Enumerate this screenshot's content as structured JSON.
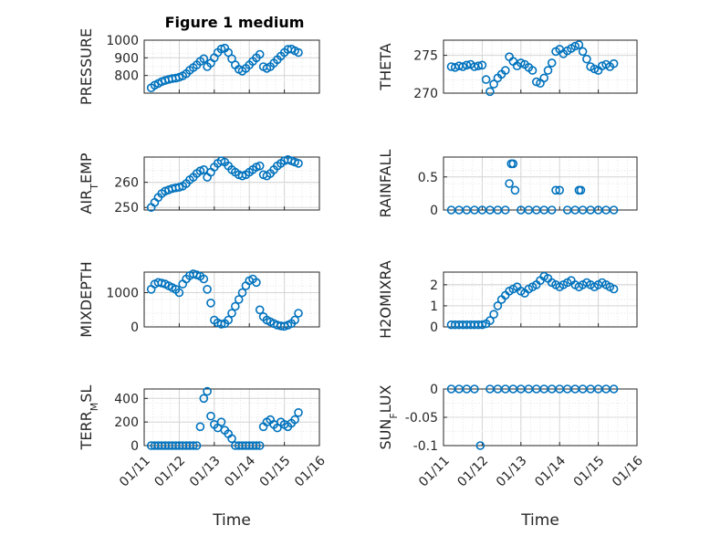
{
  "figure_title": "Figure 1 medium",
  "marker_color": "#0072BD",
  "x_tick_labels": [
    "01/11",
    "01/12",
    "01/13",
    "01/14",
    "01/15",
    "01/16"
  ],
  "x_axis_label": "Time",
  "chart_data": [
    {
      "type": "scatter",
      "ylabel": "PRESSURE",
      "yticks": [
        "800",
        "900",
        "1000"
      ],
      "ylim": [
        700,
        1000
      ],
      "x": [
        11.2,
        11.3,
        11.4,
        11.5,
        11.6,
        11.7,
        11.8,
        11.9,
        12.0,
        12.1,
        12.2,
        12.3,
        12.4,
        12.5,
        12.6,
        12.7,
        12.8,
        12.9,
        13.0,
        13.1,
        13.2,
        13.3,
        13.4,
        13.5,
        13.6,
        13.7,
        13.8,
        13.9,
        14.0,
        14.1,
        14.2,
        14.3,
        14.4,
        14.5,
        14.6,
        14.7,
        14.8,
        14.9,
        15.0,
        15.1,
        15.2,
        15.3,
        15.4
      ],
      "y": [
        730,
        745,
        755,
        765,
        772,
        778,
        782,
        785,
        790,
        798,
        810,
        830,
        845,
        860,
        880,
        895,
        850,
        870,
        900,
        930,
        950,
        955,
        930,
        895,
        860,
        835,
        825,
        840,
        860,
        880,
        900,
        920,
        850,
        840,
        850,
        870,
        890,
        910,
        930,
        948,
        950,
        940,
        930
      ]
    },
    {
      "type": "scatter",
      "ylabel": "THETA",
      "yticks": [
        "270",
        "275"
      ],
      "ylim": [
        270,
        277
      ],
      "x": [
        11.2,
        11.3,
        11.4,
        11.5,
        11.6,
        11.7,
        11.8,
        11.9,
        12.0,
        12.1,
        12.2,
        12.3,
        12.4,
        12.5,
        12.6,
        12.7,
        12.8,
        12.9,
        13.0,
        13.1,
        13.2,
        13.3,
        13.4,
        13.5,
        13.6,
        13.7,
        13.8,
        13.9,
        14.0,
        14.1,
        14.2,
        14.3,
        14.4,
        14.5,
        14.6,
        14.7,
        14.8,
        14.9,
        15.0,
        15.1,
        15.2,
        15.3,
        15.4
      ],
      "y": [
        273.5,
        273.4,
        273.6,
        273.5,
        273.7,
        273.8,
        273.5,
        273.6,
        273.7,
        271.8,
        270.2,
        271.2,
        272.0,
        272.5,
        273.0,
        274.8,
        274.2,
        273.6,
        274.0,
        273.8,
        273.4,
        273.0,
        271.5,
        271.3,
        272.0,
        273.0,
        274.0,
        275.5,
        275.8,
        275.2,
        275.6,
        275.9,
        276.2,
        276.4,
        275.5,
        274.5,
        273.5,
        273.2,
        273.0,
        273.6,
        273.8,
        273.5,
        273.9
      ]
    },
    {
      "type": "scatter",
      "ylabel": "AIR_TEMP",
      "yticks": [
        "250",
        "260"
      ],
      "ylim": [
        249,
        270
      ],
      "x": [
        11.2,
        11.3,
        11.4,
        11.5,
        11.6,
        11.7,
        11.8,
        11.9,
        12.0,
        12.1,
        12.2,
        12.3,
        12.4,
        12.5,
        12.6,
        12.7,
        12.8,
        12.9,
        13.0,
        13.1,
        13.2,
        13.3,
        13.4,
        13.5,
        13.6,
        13.7,
        13.8,
        13.9,
        14.0,
        14.1,
        14.2,
        14.3,
        14.4,
        14.5,
        14.6,
        14.7,
        14.8,
        14.9,
        15.0,
        15.1,
        15.2,
        15.3,
        15.4
      ],
      "y": [
        250,
        252,
        254,
        255.5,
        256.5,
        257,
        257.5,
        257.8,
        258,
        258.5,
        259.5,
        261,
        262,
        263.5,
        264.5,
        265,
        262,
        264,
        266,
        267.5,
        268.5,
        268,
        266.5,
        265,
        264,
        263,
        262.5,
        263,
        264,
        265,
        266,
        266.5,
        263,
        262.5,
        263.5,
        265,
        266.5,
        267.5,
        268.5,
        269,
        268.5,
        268,
        267.5
      ]
    },
    {
      "type": "scatter",
      "ylabel": "RAINFALL",
      "yticks": [
        "0",
        "0.5"
      ],
      "ylim": [
        0,
        0.8
      ],
      "x": [
        11.2,
        11.4,
        11.6,
        11.8,
        12.0,
        12.2,
        12.4,
        12.6,
        12.7,
        12.75,
        12.8,
        12.85,
        13.0,
        13.2,
        13.4,
        13.6,
        13.8,
        13.9,
        14.0,
        14.2,
        14.4,
        14.5,
        14.55,
        14.6,
        14.8,
        15.0,
        15.2,
        15.4
      ],
      "y": [
        0,
        0,
        0,
        0,
        0,
        0,
        0,
        0,
        0.4,
        0.7,
        0.7,
        0.3,
        0,
        0,
        0,
        0,
        0,
        0.3,
        0.3,
        0,
        0,
        0.3,
        0.3,
        0,
        0,
        0,
        0,
        0
      ]
    },
    {
      "type": "scatter",
      "ylabel": "MIXDEPTH",
      "yticks": [
        "0",
        "1000"
      ],
      "ylim": [
        0,
        1600
      ],
      "x": [
        11.2,
        11.3,
        11.4,
        11.5,
        11.6,
        11.7,
        11.8,
        11.9,
        12.0,
        12.1,
        12.2,
        12.3,
        12.4,
        12.5,
        12.6,
        12.7,
        12.8,
        12.9,
        13.0,
        13.1,
        13.2,
        13.3,
        13.4,
        13.5,
        13.6,
        13.7,
        13.8,
        13.9,
        14.0,
        14.1,
        14.2,
        14.3,
        14.4,
        14.5,
        14.6,
        14.7,
        14.8,
        14.9,
        15.0,
        15.1,
        15.2,
        15.3,
        15.4
      ],
      "y": [
        1100,
        1250,
        1300,
        1280,
        1250,
        1200,
        1150,
        1100,
        1000,
        1250,
        1400,
        1500,
        1550,
        1520,
        1480,
        1400,
        1100,
        700,
        200,
        120,
        80,
        100,
        200,
        400,
        600,
        800,
        1000,
        1200,
        1350,
        1400,
        1300,
        500,
        300,
        200,
        150,
        100,
        50,
        30,
        20,
        50,
        100,
        200,
        400
      ]
    },
    {
      "type": "scatter",
      "ylabel": "H2OMIXRA",
      "yticks": [
        "0",
        "1",
        "2"
      ],
      "ylim": [
        0,
        2.6
      ],
      "x": [
        11.2,
        11.3,
        11.4,
        11.5,
        11.6,
        11.7,
        11.8,
        11.9,
        12.0,
        12.1,
        12.2,
        12.3,
        12.4,
        12.5,
        12.6,
        12.7,
        12.8,
        12.9,
        13.0,
        13.1,
        13.2,
        13.3,
        13.4,
        13.5,
        13.6,
        13.7,
        13.8,
        13.9,
        14.0,
        14.1,
        14.2,
        14.3,
        14.4,
        14.5,
        14.6,
        14.7,
        14.8,
        14.9,
        15.0,
        15.1,
        15.2,
        15.3,
        15.4
      ],
      "y": [
        0.1,
        0.1,
        0.1,
        0.1,
        0.1,
        0.1,
        0.1,
        0.1,
        0.1,
        0.15,
        0.3,
        0.6,
        1.0,
        1.3,
        1.5,
        1.7,
        1.8,
        1.9,
        1.7,
        1.6,
        1.8,
        1.9,
        2.0,
        2.2,
        2.4,
        2.3,
        2.1,
        2.0,
        1.9,
        2.0,
        2.1,
        2.2,
        2.0,
        1.9,
        2.0,
        2.1,
        2.0,
        1.9,
        2.0,
        2.1,
        2.0,
        1.9,
        1.8
      ]
    },
    {
      "type": "scatter",
      "ylabel": "TERR_MSL",
      "yticks": [
        "0",
        "200",
        "400"
      ],
      "ylim": [
        0,
        480
      ],
      "x": [
        11.2,
        11.3,
        11.4,
        11.5,
        11.6,
        11.7,
        11.8,
        11.9,
        12.0,
        12.1,
        12.2,
        12.3,
        12.4,
        12.5,
        12.6,
        12.7,
        12.8,
        12.9,
        13.0,
        13.1,
        13.2,
        13.3,
        13.4,
        13.5,
        13.6,
        13.7,
        13.8,
        13.9,
        14.0,
        14.1,
        14.2,
        14.3,
        14.4,
        14.5,
        14.6,
        14.7,
        14.8,
        14.9,
        15.0,
        15.1,
        15.2,
        15.3,
        15.4
      ],
      "y": [
        0,
        0,
        0,
        0,
        0,
        0,
        0,
        0,
        0,
        0,
        0,
        0,
        0,
        0,
        160,
        400,
        460,
        250,
        180,
        150,
        200,
        130,
        100,
        60,
        0,
        0,
        0,
        0,
        0,
        0,
        0,
        0,
        160,
        200,
        220,
        180,
        150,
        200,
        180,
        160,
        190,
        220,
        280
      ]
    },
    {
      "type": "scatter",
      "ylabel": "SUN_FLUX",
      "yticks": [
        "-0.1",
        "-0.05",
        "0"
      ],
      "ylim": [
        -0.1,
        0
      ],
      "x": [
        11.2,
        11.4,
        11.6,
        11.8,
        11.95,
        12.2,
        12.4,
        12.6,
        12.8,
        13.0,
        13.2,
        13.4,
        13.6,
        13.8,
        14.0,
        14.2,
        14.4,
        14.6,
        14.8,
        15.0,
        15.2,
        15.4
      ],
      "y": [
        0,
        0,
        0,
        0,
        -0.1,
        0,
        0,
        0,
        0,
        0,
        0,
        0,
        0,
        0,
        0,
        0,
        0,
        0,
        0,
        0,
        0,
        0
      ]
    }
  ]
}
